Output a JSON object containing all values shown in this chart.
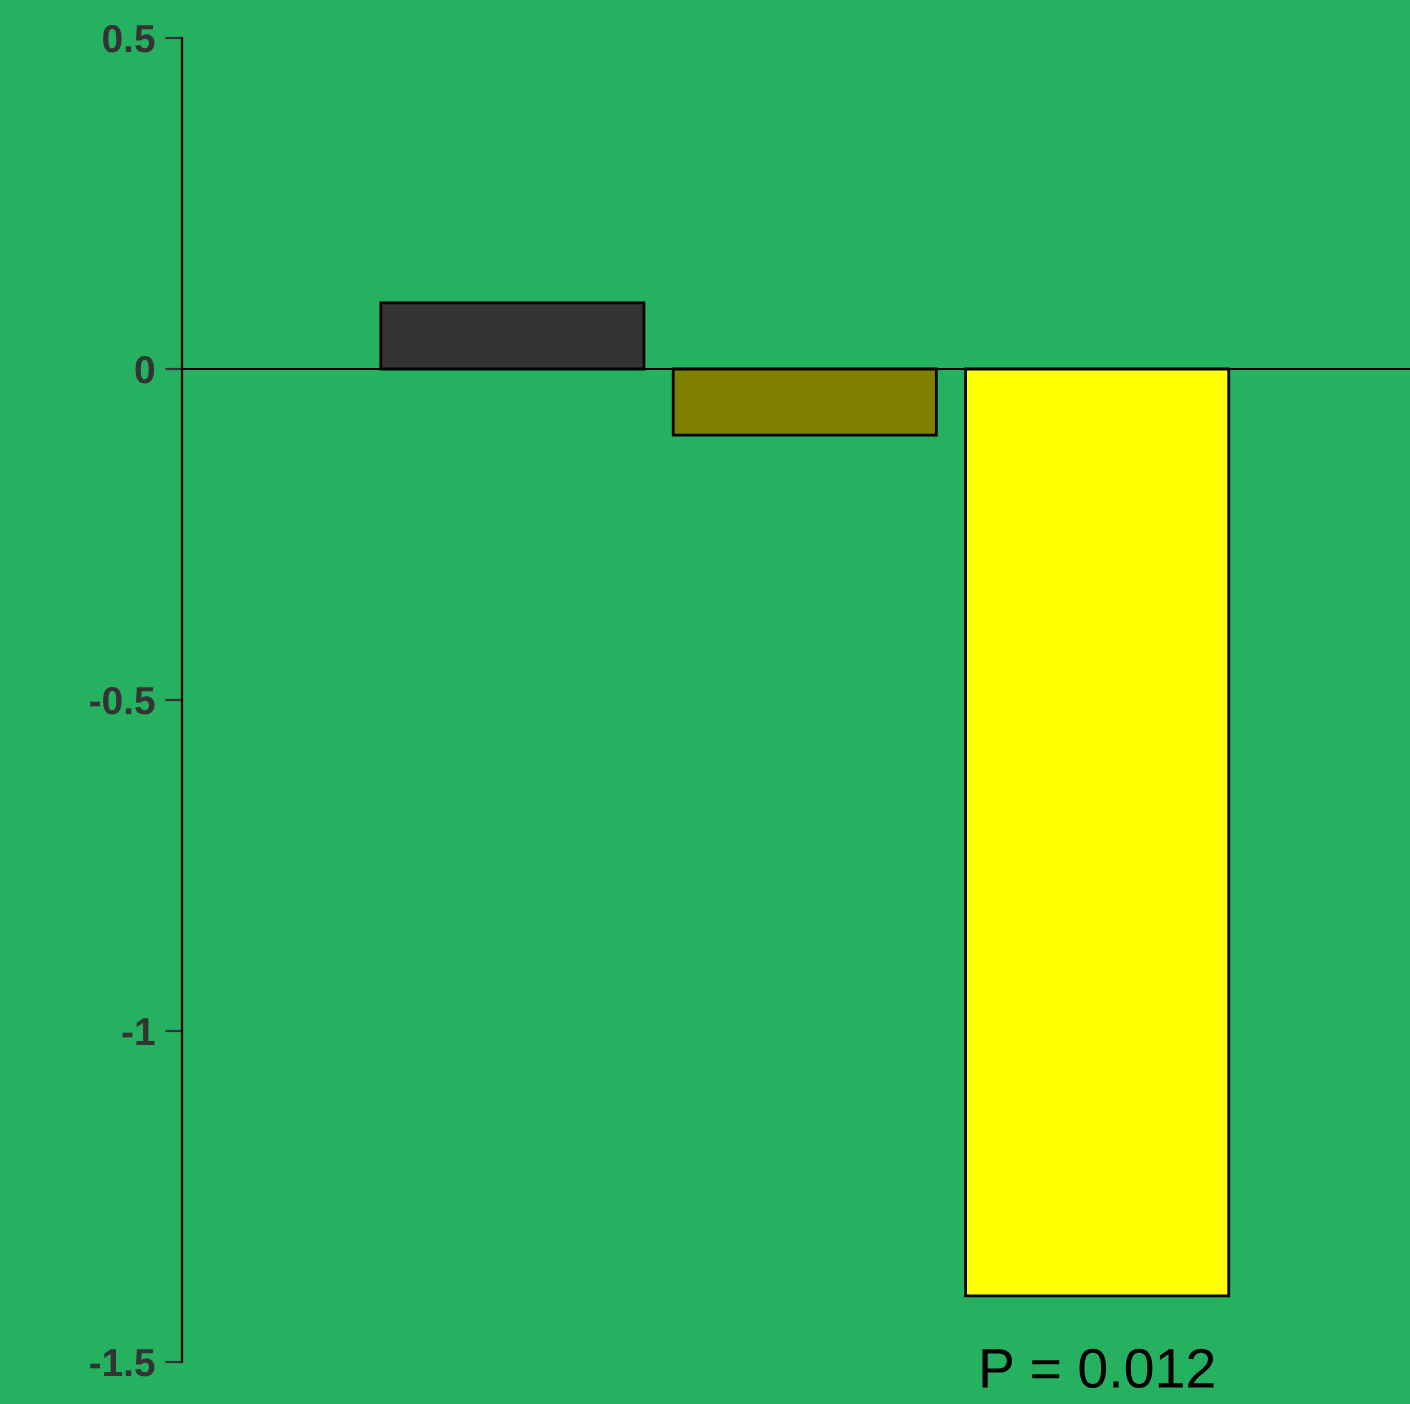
{
  "chart_data": {
    "type": "bar",
    "categories": [
      null,
      null,
      null
    ],
    "values": [
      0.1,
      -0.1,
      -1.4
    ],
    "colors": [
      "#333333",
      "#808000",
      "#ffff00"
    ],
    "ylim": [
      -1.5,
      0.5
    ],
    "yticks": [
      0.5,
      0,
      -0.5,
      -1,
      -1.5
    ],
    "tick_labels": "y",
    "annotations": [
      "P = 0.012"
    ]
  }
}
